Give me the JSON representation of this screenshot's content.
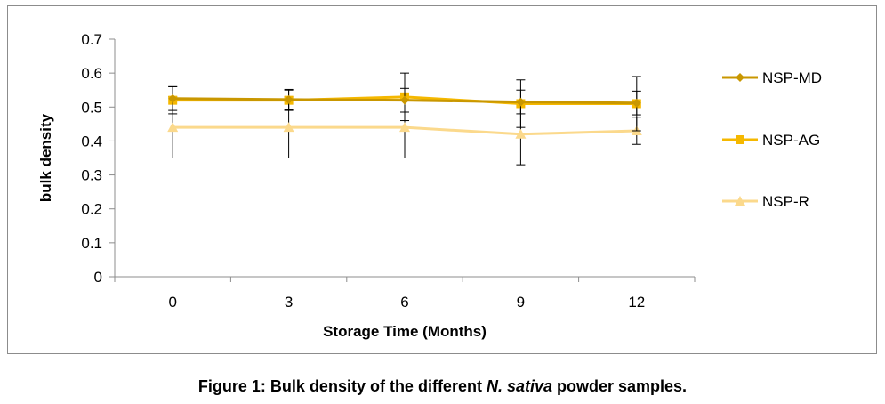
{
  "chart_data": {
    "type": "line",
    "x": [
      "0",
      "3",
      "6",
      "9",
      "12"
    ],
    "xlabel": "Storage Time (Months)",
    "ylabel": "bulk density",
    "ylim": [
      0,
      0.7
    ],
    "yticks": [
      "0",
      "0.1",
      "0.2",
      "0.3",
      "0.4",
      "0.5",
      "0.6",
      "0.7"
    ],
    "grid": false,
    "legend_position": "right",
    "error_bars": true,
    "series": [
      {
        "name": "NSP-MD",
        "values": [
          0.525,
          0.522,
          0.52,
          0.515,
          0.512
        ],
        "errors": [
          0.035,
          0.03,
          0.035,
          0.035,
          0.035
        ],
        "color": "#c99700",
        "marker": "diamond"
      },
      {
        "name": "NSP-AG",
        "values": [
          0.52,
          0.52,
          0.53,
          0.51,
          0.51
        ],
        "errors": [
          0.04,
          0.03,
          0.07,
          0.07,
          0.08
        ],
        "color": "#f5b800",
        "marker": "square"
      },
      {
        "name": "NSP-R",
        "values": [
          0.44,
          0.44,
          0.44,
          0.42,
          0.43
        ],
        "errors": [
          0.09,
          0.09,
          0.09,
          0.09,
          0.04
        ],
        "color": "#fbd98c",
        "marker": "triangle"
      }
    ]
  },
  "caption": {
    "prefix": "Figure 1: Bulk density of the different ",
    "italic": "N. sativa",
    "suffix": " powder samples."
  }
}
